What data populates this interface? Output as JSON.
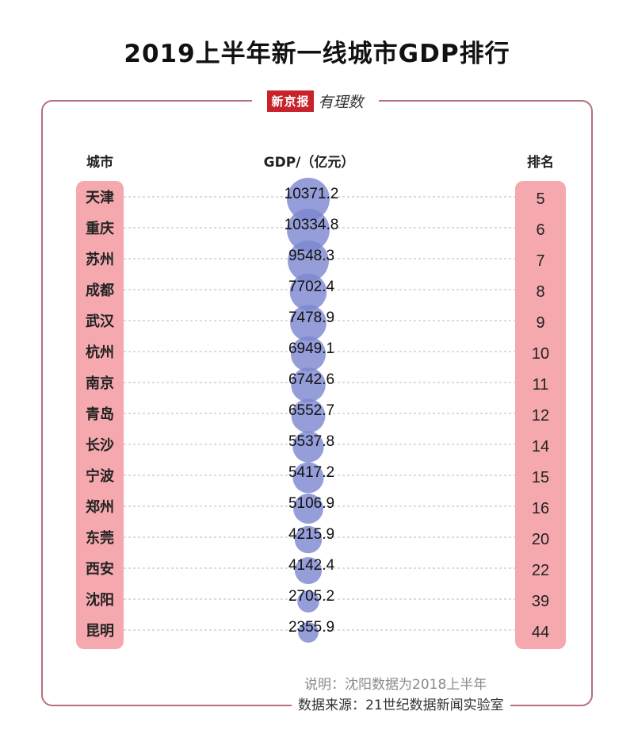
{
  "title": "2019上半年新一线城市GDP排行",
  "logo": {
    "brand": "新京报",
    "script": "有理数"
  },
  "headers": {
    "city": "城市",
    "gdp": "GDP/（亿元）",
    "rank": "排名"
  },
  "note": "说明：沈阳数据为2018上半年",
  "source": "数据来源：21世纪数据新闻实验室",
  "colors": {
    "bubble": "#7b86cf",
    "pill": "#f5a9ae",
    "frame": "#b4707b"
  },
  "chart_data": {
    "type": "table",
    "columns": [
      "城市",
      "GDP/（亿元）",
      "排名"
    ],
    "rows": [
      {
        "city": "天津",
        "gdp": 10371.2,
        "gdp_label": "10371.2",
        "rank": "5"
      },
      {
        "city": "重庆",
        "gdp": 10334.8,
        "gdp_label": "10334.8",
        "rank": "6"
      },
      {
        "city": "苏州",
        "gdp": 9548.3,
        "gdp_label": "9548.3",
        "rank": "7"
      },
      {
        "city": "成都",
        "gdp": 7702.4,
        "gdp_label": "7702.4",
        "rank": "8"
      },
      {
        "city": "武汉",
        "gdp": 7478.9,
        "gdp_label": "7478.9",
        "rank": "9"
      },
      {
        "city": "杭州",
        "gdp": 6949.1,
        "gdp_label": "6949.1",
        "rank": "10"
      },
      {
        "city": "南京",
        "gdp": 6742.6,
        "gdp_label": "6742.6",
        "rank": "11"
      },
      {
        "city": "青岛",
        "gdp": 6552.7,
        "gdp_label": "6552.7",
        "rank": "12"
      },
      {
        "city": "长沙",
        "gdp": 5537.8,
        "gdp_label": "5537.8",
        "rank": "14"
      },
      {
        "city": "宁波",
        "gdp": 5417.2,
        "gdp_label": "5417.2",
        "rank": "15"
      },
      {
        "city": "郑州",
        "gdp": 5106.9,
        "gdp_label": "5106.9",
        "rank": "16"
      },
      {
        "city": "东莞",
        "gdp": 4215.9,
        "gdp_label": "4215.9",
        "rank": "20"
      },
      {
        "city": "西安",
        "gdp": 4142.4,
        "gdp_label": "4142.4",
        "rank": "22"
      },
      {
        "city": "沈阳",
        "gdp": 2705.2,
        "gdp_label": "2705.2",
        "rank": "39"
      },
      {
        "city": "昆明",
        "gdp": 2355.9,
        "gdp_label": "2355.9",
        "rank": "44"
      }
    ]
  }
}
